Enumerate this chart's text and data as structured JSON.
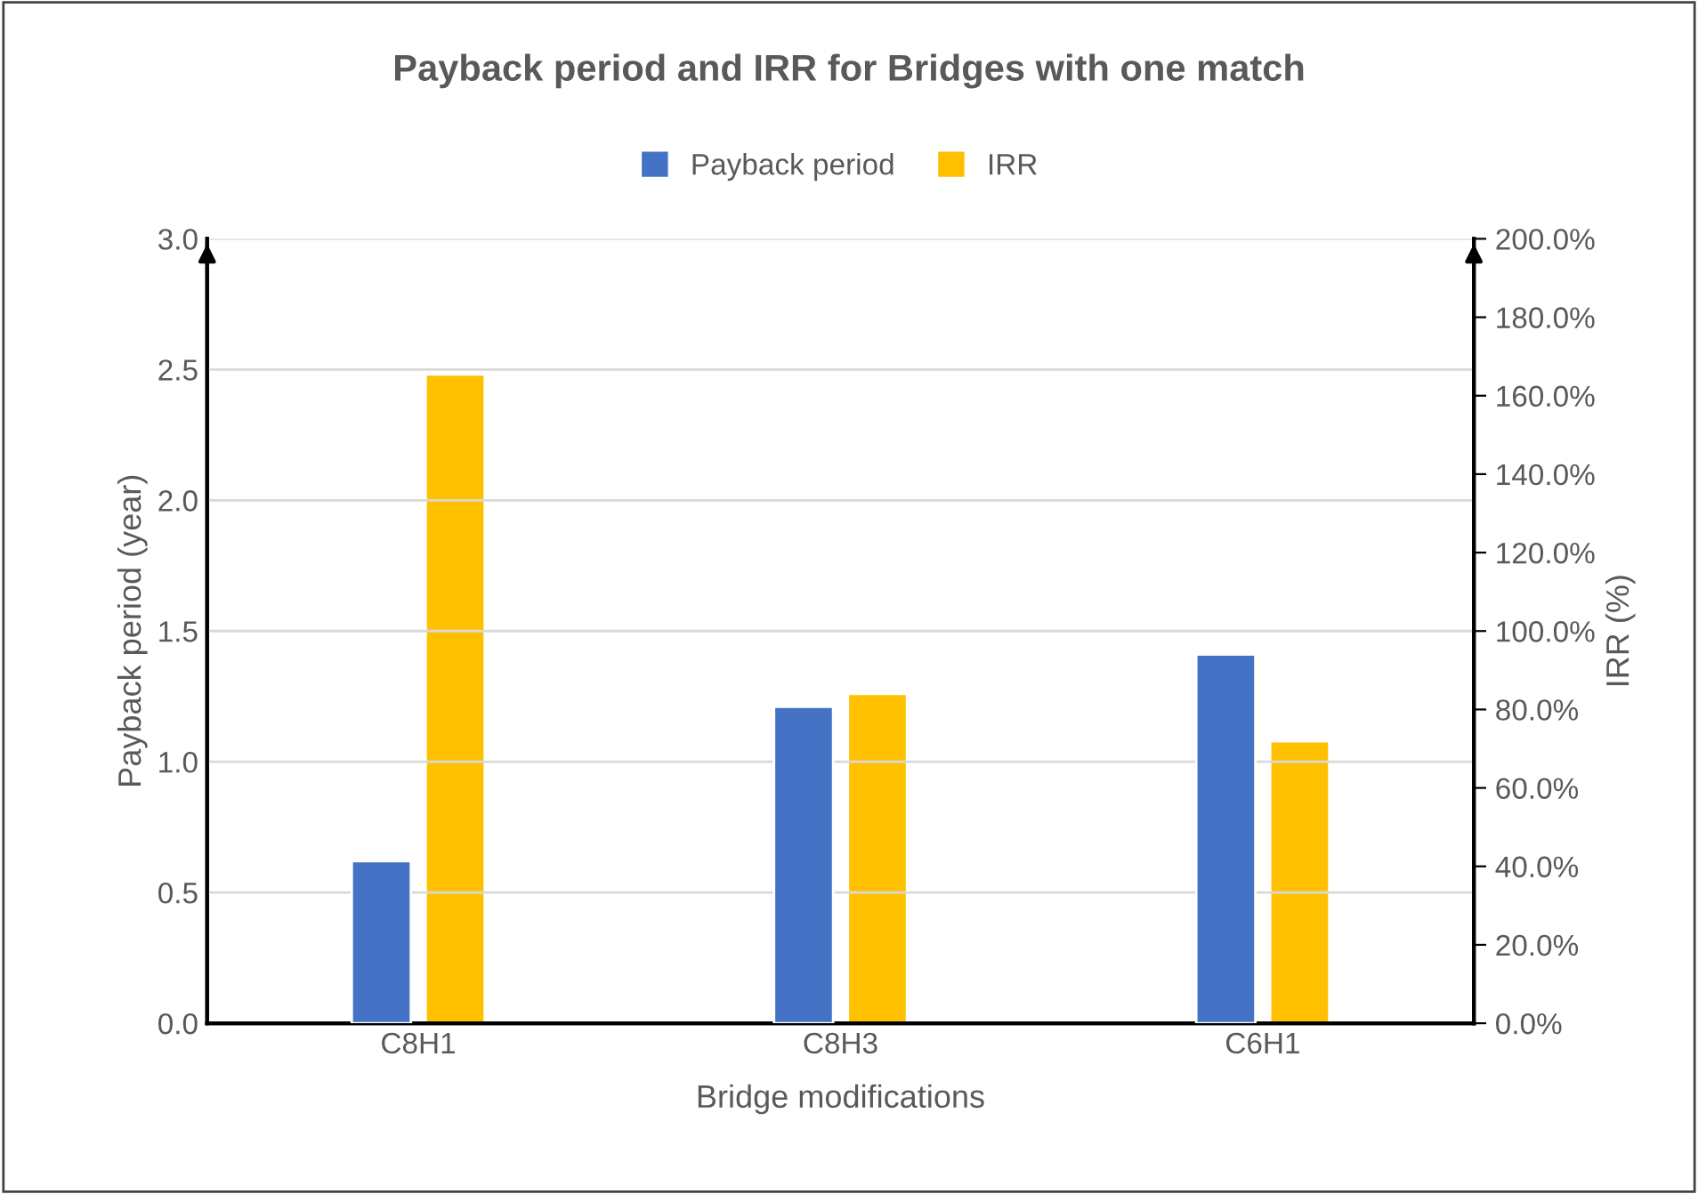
{
  "chart_data": {
    "type": "bar",
    "title": "Payback period and IRR for Bridges with one match",
    "categories": [
      "C8H1",
      "C8H3",
      "C6H1"
    ],
    "series": [
      {
        "name": "Payback period",
        "color": "#4472c4",
        "values": [
          0.62,
          1.21,
          1.41
        ]
      },
      {
        "name": "IRR",
        "color": "#ffc000",
        "values": [
          165.4,
          84.0,
          71.9
        ],
        "axis": "y2"
      }
    ],
    "xlabel": "Bridge modifications",
    "ylabel": "Payback period (year)",
    "y2label": "IRR (%)",
    "ylim": [
      0,
      3.0
    ],
    "yticks": [
      {
        "value": 0,
        "label": "0.0"
      },
      {
        "value": 0.5,
        "label": "0.5"
      },
      {
        "value": 1.0,
        "label": "1.0"
      },
      {
        "value": 1.5,
        "label": "1.5"
      },
      {
        "value": 2.0,
        "label": "2.0"
      },
      {
        "value": 2.5,
        "label": "2.5"
      },
      {
        "value": 3.0,
        "label": "3.0"
      }
    ],
    "y2lim": [
      0,
      200
    ],
    "y2ticks": [
      {
        "value": 0,
        "label": "0.0%"
      },
      {
        "value": 20,
        "label": "20.0%"
      },
      {
        "value": 40,
        "label": "40.0%"
      },
      {
        "value": 60,
        "label": "60.0%"
      },
      {
        "value": 80,
        "label": "80.0%"
      },
      {
        "value": 100,
        "label": "100.0%"
      },
      {
        "value": 120,
        "label": "120.0%"
      },
      {
        "value": 140,
        "label": "140.0%"
      },
      {
        "value": 160,
        "label": "160.0%"
      },
      {
        "value": 180,
        "label": "180.0%"
      },
      {
        "value": 200,
        "label": "200.0%"
      }
    ],
    "grid": "y",
    "legend": "top"
  }
}
